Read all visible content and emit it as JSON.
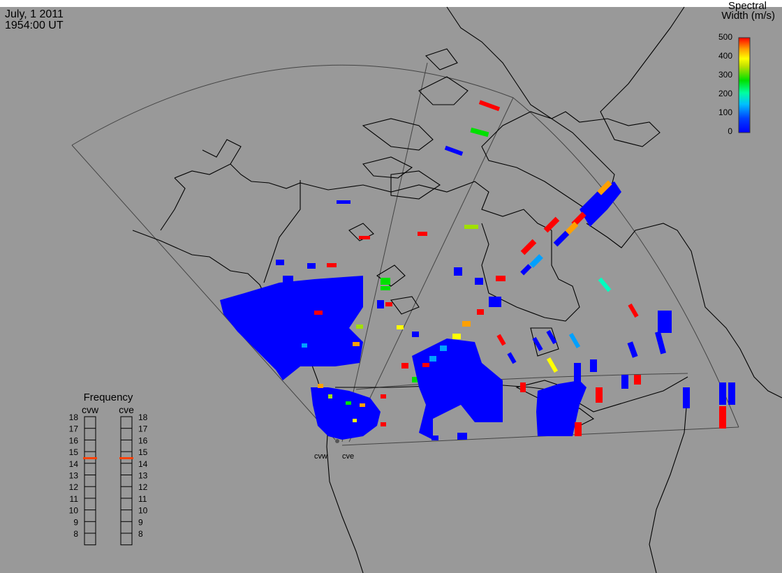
{
  "header": {
    "date": "July, 1 2011",
    "time": "1954:00 UT"
  },
  "colorbar": {
    "title_line1": "Spectral",
    "title_line2": "Width (m/s)",
    "ticks": [
      "0",
      "100",
      "200",
      "300",
      "400",
      "500"
    ],
    "colors": [
      "#0000ff",
      "#00a0ff",
      "#00ffc0",
      "#00e000",
      "#a0e000",
      "#ffff00",
      "#ffa000",
      "#ff0000"
    ]
  },
  "frequency": {
    "title": "Frequency",
    "radars": [
      "cvw",
      "cve"
    ],
    "levels": [
      "18",
      "17",
      "16",
      "15",
      "14",
      "13",
      "12",
      "11",
      "10",
      "9",
      "8"
    ],
    "selected": "15"
  },
  "stations": {
    "west": "cvw",
    "east": "cve"
  }
}
